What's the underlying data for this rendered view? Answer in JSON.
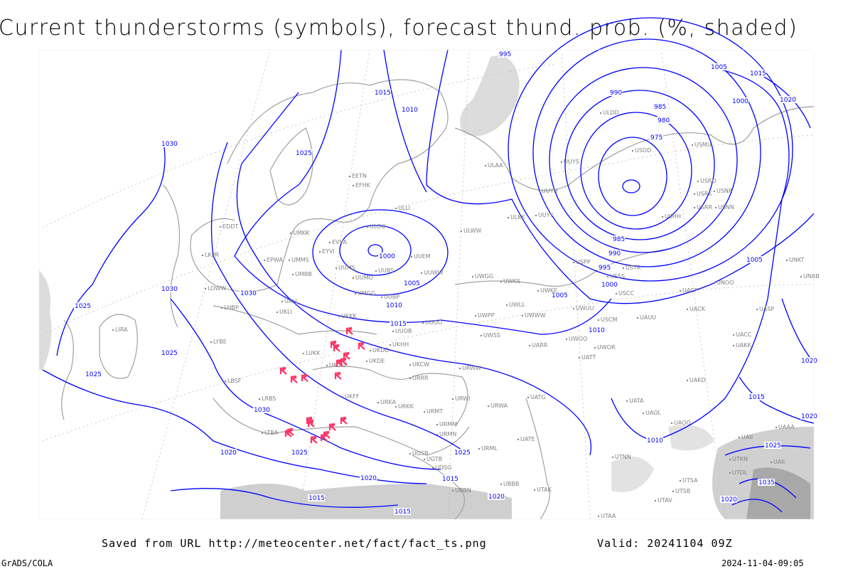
{
  "title": "Current thunderstorms (symbols), forecast thund. prob. (%, shaded)",
  "footer": {
    "source": "Saved from URL http://meteocenter.net/fact/fact_ts.png",
    "valid": "Valid: 20241104 09Z",
    "software": "GrADS/COLA",
    "timestamp": "2024-11-04-09:05"
  },
  "colors": {
    "isobar": "#0000ff",
    "coast": "#a0a0a0",
    "thunderstorm": "#ff3366",
    "shading": "#d8d8d8"
  },
  "legend_symbol": "thunderstorm-icon",
  "isobar_labels": [
    "995",
    "1005",
    "1015",
    "1020",
    "1000",
    "990",
    "985",
    "980",
    "975",
    "1015",
    "1010",
    "1025",
    "1030",
    "1030",
    "1025",
    "1025",
    "1025",
    "1030",
    "1030",
    "1020",
    "1025",
    "1020",
    "1015",
    "1015",
    "1025",
    "1015",
    "1020",
    "1010",
    "1010",
    "1005",
    "1000",
    "995",
    "990",
    "985",
    "1005",
    "1020",
    "1015",
    "1020",
    "1025",
    "1035",
    "1020",
    "1000",
    "1005",
    "1010",
    "1015"
  ],
  "stations": [
    "ULAA",
    "ULLI",
    "ULOO",
    "ULWW",
    "ULKK",
    "UUYY",
    "UUYH",
    "UUYS",
    "ULDD",
    "USDD",
    "USMU",
    "USRO",
    "USRK",
    "USNR",
    "USRR",
    "USNN",
    "USHH",
    "USPP",
    "USTR",
    "USSS",
    "USCC",
    "UACP",
    "UNOO",
    "UNKT",
    "UNBB",
    "UASP",
    "UACK",
    "UACC",
    "UAKK",
    "UAKD",
    "UATA",
    "UAOL",
    "UAOO",
    "UAII",
    "UAAA",
    "UTAK",
    "UTAA",
    "UBBB",
    "URMN",
    "URMM",
    "URMT",
    "URWI",
    "URWA",
    "UATG",
    "UATE",
    "URML",
    "URRR",
    "UKCW",
    "URWW",
    "UWSS",
    "UWPP",
    "UWGG",
    "UWKS",
    "UWKE",
    "UWUU",
    "UWLL",
    "UWWW",
    "USCM",
    "UAUU",
    "UWOO",
    "UWOR",
    "UARR",
    "UATT",
    "UUEM",
    "UUWW",
    "UUMS",
    "UUMO",
    "UUBS",
    "UUBP",
    "UMGG",
    "UUOO",
    "UUOB",
    "UMMS",
    "UMBB",
    "UMKK",
    "EVVA",
    "EYVI",
    "EETN",
    "EFHK",
    "EPWA",
    "UKLL",
    "UKLI",
    "UKKK",
    "UKDD",
    "UKDE",
    "UKOO",
    "LUKK",
    "UKHH",
    "UKFF",
    "URKA",
    "URKK",
    "LRBS",
    "LBSF",
    "LYBE",
    "LHBP",
    "LOWW",
    "LKPR",
    "EDDT",
    "LIRA",
    "LTBA",
    "UGSB",
    "UGTB",
    "UDSG",
    "UBBN",
    "UTSA",
    "UTAV",
    "UTSB",
    "UTDL",
    "UTKN",
    "UTNN",
    "UAII"
  ]
}
